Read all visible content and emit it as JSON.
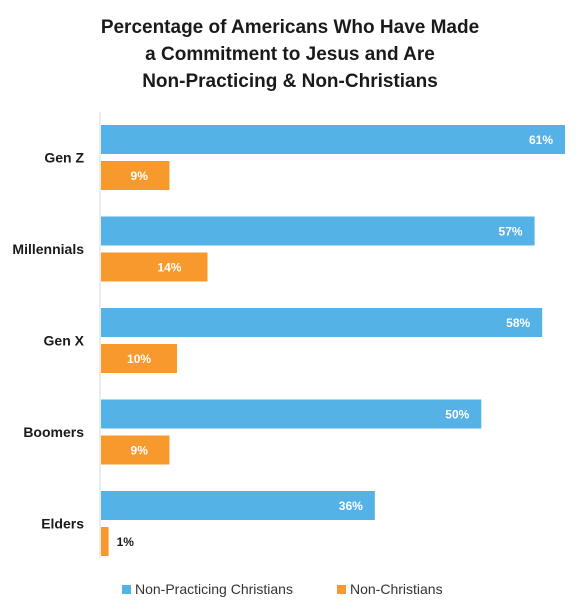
{
  "chart_data": {
    "type": "bar",
    "orientation": "horizontal",
    "title_lines": [
      "Percentage of Americans Who Have Made",
      "a Commitment to Jesus and Are",
      "Non-Practicing & Non-Christians"
    ],
    "categories": [
      "Gen Z",
      "Millennials",
      "Gen X",
      "Boomers",
      "Elders"
    ],
    "series": [
      {
        "name": "Non-Practicing Christians",
        "values": [
          61,
          57,
          58,
          50,
          36
        ],
        "labels": [
          "61%",
          "57%",
          "58%",
          "50%",
          "36%"
        ],
        "color": "#55b2e6"
      },
      {
        "name": "Non-Christians",
        "values": [
          9,
          14,
          10,
          9,
          1
        ],
        "labels": [
          "9%",
          "14%",
          "10%",
          "9%",
          "1%"
        ],
        "color": "#f7992c"
      }
    ],
    "xlim": [
      0,
      61
    ],
    "grid": false,
    "legend_position": "bottom"
  }
}
